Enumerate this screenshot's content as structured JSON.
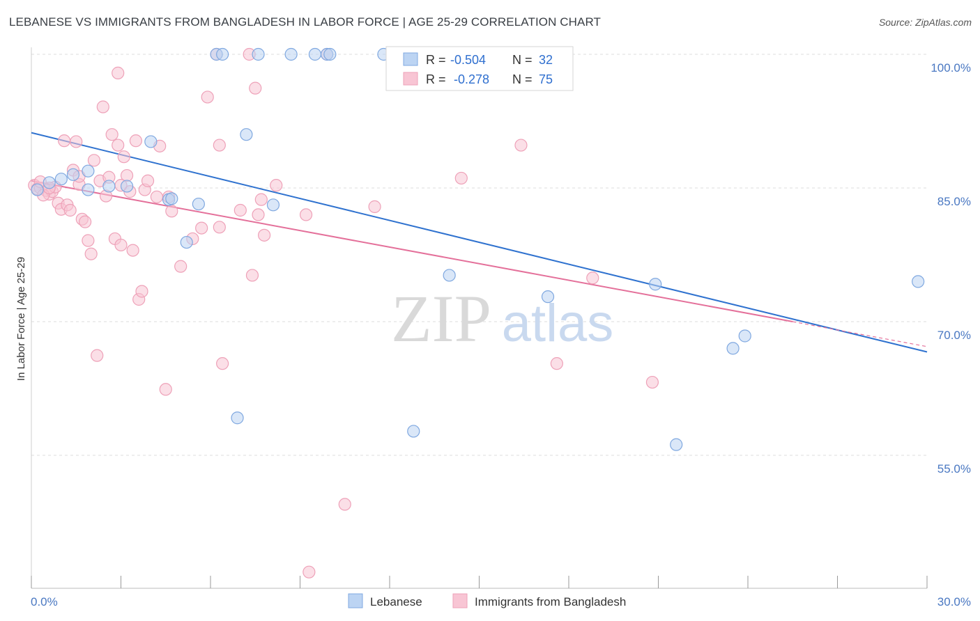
{
  "title": "LEBANESE VS IMMIGRANTS FROM BANGLADESH IN LABOR FORCE | AGE 25-29 CORRELATION CHART",
  "source": "Source: ZipAtlas.com",
  "watermark": {
    "zip": "ZIP",
    "atlas": "atlas"
  },
  "colors": {
    "blue_fill": "#bcd4f3",
    "blue_stroke": "#7fa8e0",
    "blue_line": "#2f72cf",
    "pink_fill": "#f8c5d4",
    "pink_stroke": "#eea1b8",
    "pink_line": "#e4709a",
    "grid": "#dcdcdc",
    "axis_text": "#4a78c2"
  },
  "legend": {
    "rows": [
      {
        "r_label": "R =",
        "r_value": "-0.504",
        "n_label": "N =",
        "n_value": "32"
      },
      {
        "r_label": "R =",
        "r_value": "-0.278",
        "n_label": "N =",
        "n_value": "75"
      }
    ]
  },
  "bottom_legend": [
    "Lebanese",
    "Immigrants from Bangladesh"
  ],
  "chart_data": {
    "type": "scatter",
    "title": "LEBANESE VS IMMIGRANTS FROM BANGLADESH IN LABOR FORCE | AGE 25-29 CORRELATION CHART",
    "xlabel": "",
    "ylabel": "In Labor Force | Age 25-29",
    "xlim": [
      0,
      30
    ],
    "ylim": [
      40.5,
      102
    ],
    "x_tick_labels": [
      "0.0%",
      "30.0%"
    ],
    "y_ticks": [
      55,
      70,
      85,
      100
    ],
    "y_tick_labels": [
      "55.0%",
      "70.0%",
      "85.0%",
      "100.0%"
    ],
    "grid": true,
    "legend_position": "top-center",
    "series": [
      {
        "name": "Lebanese",
        "color": "blue",
        "points": [
          [
            0.2,
            84.8
          ],
          [
            0.6,
            85.6
          ],
          [
            1.0,
            86.0
          ],
          [
            1.4,
            86.5
          ],
          [
            1.9,
            86.9
          ],
          [
            1.9,
            84.8
          ],
          [
            2.6,
            85.2
          ],
          [
            3.2,
            85.2
          ],
          [
            4.0,
            90.2
          ],
          [
            4.6,
            83.7
          ],
          [
            4.7,
            83.8
          ],
          [
            5.2,
            78.9
          ],
          [
            5.6,
            83.2
          ],
          [
            6.2,
            100.0
          ],
          [
            6.4,
            100.0
          ],
          [
            7.2,
            91.0
          ],
          [
            7.6,
            100.0
          ],
          [
            8.1,
            83.1
          ],
          [
            8.7,
            100.0
          ],
          [
            9.5,
            100.0
          ],
          [
            9.9,
            100.0
          ],
          [
            11.8,
            100.0
          ],
          [
            6.9,
            59.2
          ],
          [
            12.8,
            57.7
          ],
          [
            14.0,
            75.2
          ],
          [
            17.3,
            72.8
          ],
          [
            20.9,
            74.2
          ],
          [
            21.6,
            56.2
          ],
          [
            23.5,
            67.0
          ],
          [
            23.9,
            68.4
          ],
          [
            29.7,
            74.5
          ],
          [
            10.0,
            100.0
          ]
        ],
        "trend": {
          "x": [
            0,
            30
          ],
          "y": [
            91.2,
            66.6
          ]
        }
      },
      {
        "name": "Immigrants from Bangladesh",
        "color": "pink",
        "points": [
          [
            0.1,
            85.3
          ],
          [
            0.2,
            84.9
          ],
          [
            0.3,
            85.0
          ],
          [
            0.5,
            84.7
          ],
          [
            0.6,
            84.3
          ],
          [
            0.7,
            84.6
          ],
          [
            0.8,
            85.1
          ],
          [
            0.9,
            83.3
          ],
          [
            1.0,
            82.6
          ],
          [
            1.1,
            90.3
          ],
          [
            1.2,
            83.1
          ],
          [
            1.3,
            82.5
          ],
          [
            1.5,
            90.2
          ],
          [
            1.6,
            85.4
          ],
          [
            1.7,
            81.5
          ],
          [
            1.8,
            81.2
          ],
          [
            1.9,
            79.1
          ],
          [
            2.0,
            77.6
          ],
          [
            2.1,
            88.1
          ],
          [
            2.3,
            85.8
          ],
          [
            2.4,
            94.1
          ],
          [
            2.5,
            84.1
          ],
          [
            2.6,
            86.2
          ],
          [
            2.7,
            91.0
          ],
          [
            2.8,
            79.3
          ],
          [
            2.9,
            89.8
          ],
          [
            3.0,
            78.6
          ],
          [
            3.1,
            88.5
          ],
          [
            3.2,
            86.4
          ],
          [
            3.3,
            84.6
          ],
          [
            3.4,
            78.0
          ],
          [
            3.5,
            90.3
          ],
          [
            3.6,
            72.5
          ],
          [
            3.7,
            73.4
          ],
          [
            3.8,
            84.8
          ],
          [
            3.9,
            85.8
          ],
          [
            4.3,
            89.7
          ],
          [
            4.5,
            62.4
          ],
          [
            4.6,
            84.0
          ],
          [
            4.7,
            82.4
          ],
          [
            5.0,
            76.2
          ],
          [
            5.4,
            79.3
          ],
          [
            5.7,
            80.5
          ],
          [
            5.9,
            95.2
          ],
          [
            6.2,
            100.0
          ],
          [
            6.3,
            89.8
          ],
          [
            6.4,
            65.3
          ],
          [
            7.0,
            82.5
          ],
          [
            7.3,
            100.0
          ],
          [
            7.4,
            75.2
          ],
          [
            7.5,
            96.2
          ],
          [
            7.6,
            82.0
          ],
          [
            7.7,
            83.7
          ],
          [
            7.8,
            79.7
          ],
          [
            8.2,
            85.3
          ],
          [
            9.2,
            82.0
          ],
          [
            10.5,
            49.5
          ],
          [
            11.5,
            82.9
          ],
          [
            14.4,
            86.1
          ],
          [
            16.4,
            89.8
          ],
          [
            17.6,
            65.3
          ],
          [
            18.8,
            74.9
          ],
          [
            20.8,
            63.2
          ],
          [
            9.3,
            41.9
          ],
          [
            0.4,
            84.2
          ],
          [
            2.2,
            66.2
          ],
          [
            1.4,
            87.0
          ],
          [
            0.3,
            85.7
          ],
          [
            3.0,
            85.3
          ],
          [
            4.2,
            84.0
          ],
          [
            0.6,
            85.0
          ],
          [
            6.3,
            80.6
          ],
          [
            1.6,
            86.3
          ],
          [
            2.9,
            97.9
          ],
          [
            9.9,
            100.0
          ]
        ],
        "trend": {
          "x": [
            0,
            25.5
          ],
          "y": [
            85.8,
            70.0
          ]
        },
        "trend_dashed": {
          "x": [
            25.5,
            30
          ],
          "y": [
            70.0,
            67.2
          ]
        }
      }
    ]
  }
}
